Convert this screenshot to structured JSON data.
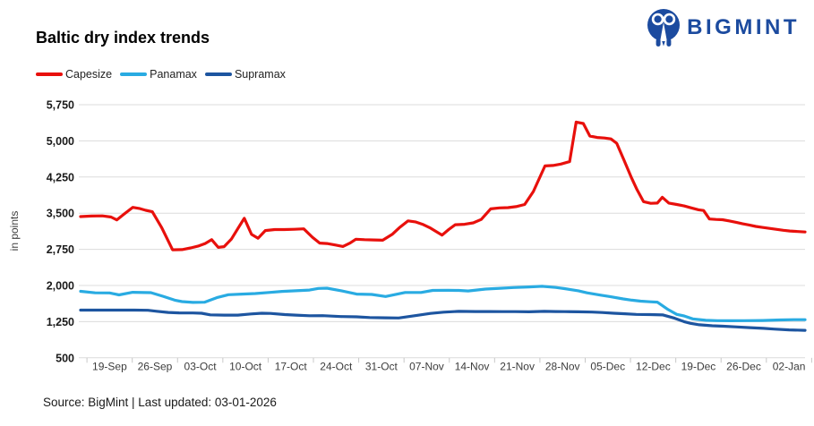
{
  "header": {
    "title": "Baltic dry index trends",
    "logo_text": "BIGMINT",
    "logo_color": "#1c4b9f"
  },
  "footer": {
    "text": "Source: BigMint | Last updated: 03-01-2026"
  },
  "chart_data": {
    "type": "line",
    "title": "Baltic dry index trends",
    "xlabel": "",
    "ylabel": "in points",
    "ylim": [
      500,
      5750
    ],
    "y_ticks": [
      500,
      1250,
      2000,
      2750,
      3500,
      4250,
      5000,
      5750
    ],
    "x_labels": [
      "19-Sep",
      "26-Sep",
      "03-Oct",
      "10-Oct",
      "17-Oct",
      "24-Oct",
      "31-Oct",
      "07-Nov",
      "14-Nov",
      "21-Nov",
      "28-Nov",
      "05-Dec",
      "12-Dec",
      "19-Dec",
      "26-Dec",
      "02-Jan"
    ],
    "grid": true,
    "legend_position": "top-left",
    "colors": {
      "gridline": "#dcdcdc",
      "axis_tick": "#c8c8c8",
      "y_label": "#1a1a1a",
      "x_label": "#3c3c3c"
    },
    "series": [
      {
        "name": "Capesize",
        "color": "#e8100c",
        "points": [
          [
            0,
            3430
          ],
          [
            0.015,
            3440
          ],
          [
            0.03,
            3445
          ],
          [
            0.042,
            3420
          ],
          [
            0.05,
            3360
          ],
          [
            0.06,
            3480
          ],
          [
            0.072,
            3620
          ],
          [
            0.082,
            3595
          ],
          [
            0.09,
            3560
          ],
          [
            0.099,
            3530
          ],
          [
            0.112,
            3200
          ],
          [
            0.127,
            2740
          ],
          [
            0.14,
            2745
          ],
          [
            0.152,
            2780
          ],
          [
            0.163,
            2820
          ],
          [
            0.172,
            2870
          ],
          [
            0.181,
            2950
          ],
          [
            0.19,
            2790
          ],
          [
            0.198,
            2805
          ],
          [
            0.208,
            2960
          ],
          [
            0.217,
            3180
          ],
          [
            0.226,
            3395
          ],
          [
            0.236,
            3060
          ],
          [
            0.245,
            2980
          ],
          [
            0.255,
            3140
          ],
          [
            0.268,
            3160
          ],
          [
            0.281,
            3160
          ],
          [
            0.295,
            3165
          ],
          [
            0.308,
            3175
          ],
          [
            0.32,
            3000
          ],
          [
            0.33,
            2880
          ],
          [
            0.34,
            2870
          ],
          [
            0.352,
            2840
          ],
          [
            0.362,
            2810
          ],
          [
            0.372,
            2880
          ],
          [
            0.38,
            2960
          ],
          [
            0.392,
            2950
          ],
          [
            0.405,
            2945
          ],
          [
            0.417,
            2940
          ],
          [
            0.43,
            3060
          ],
          [
            0.44,
            3200
          ],
          [
            0.452,
            3340
          ],
          [
            0.462,
            3320
          ],
          [
            0.472,
            3270
          ],
          [
            0.482,
            3200
          ],
          [
            0.499,
            3045
          ],
          [
            0.508,
            3160
          ],
          [
            0.517,
            3260
          ],
          [
            0.53,
            3270
          ],
          [
            0.542,
            3300
          ],
          [
            0.553,
            3370
          ],
          [
            0.566,
            3590
          ],
          [
            0.578,
            3610
          ],
          [
            0.59,
            3615
          ],
          [
            0.601,
            3635
          ],
          [
            0.613,
            3680
          ],
          [
            0.625,
            3950
          ],
          [
            0.641,
            4480
          ],
          [
            0.652,
            4490
          ],
          [
            0.663,
            4520
          ],
          [
            0.675,
            4570
          ],
          [
            0.684,
            5390
          ],
          [
            0.694,
            5360
          ],
          [
            0.703,
            5100
          ],
          [
            0.713,
            5070
          ],
          [
            0.723,
            5060
          ],
          [
            0.732,
            5040
          ],
          [
            0.74,
            4950
          ],
          [
            0.75,
            4600
          ],
          [
            0.76,
            4250
          ],
          [
            0.768,
            3990
          ],
          [
            0.777,
            3740
          ],
          [
            0.787,
            3705
          ],
          [
            0.796,
            3710
          ],
          [
            0.803,
            3830
          ],
          [
            0.812,
            3710
          ],
          [
            0.823,
            3680
          ],
          [
            0.833,
            3650
          ],
          [
            0.843,
            3610
          ],
          [
            0.853,
            3570
          ],
          [
            0.86,
            3555
          ],
          [
            0.868,
            3380
          ],
          [
            0.877,
            3370
          ],
          [
            0.886,
            3365
          ],
          [
            0.895,
            3340
          ],
          [
            0.905,
            3310
          ],
          [
            0.914,
            3280
          ],
          [
            0.923,
            3255
          ],
          [
            0.932,
            3225
          ],
          [
            0.941,
            3205
          ],
          [
            0.951,
            3185
          ],
          [
            0.96,
            3165
          ],
          [
            0.97,
            3145
          ],
          [
            0.979,
            3130
          ],
          [
            0.99,
            3120
          ],
          [
            1,
            3110
          ]
        ]
      },
      {
        "name": "Panamax",
        "color": "#29abe2",
        "points": [
          [
            0,
            1880
          ],
          [
            0.02,
            1848
          ],
          [
            0.04,
            1845
          ],
          [
            0.053,
            1805
          ],
          [
            0.072,
            1858
          ],
          [
            0.097,
            1852
          ],
          [
            0.114,
            1775
          ],
          [
            0.13,
            1695
          ],
          [
            0.14,
            1665
          ],
          [
            0.155,
            1650
          ],
          [
            0.171,
            1652
          ],
          [
            0.188,
            1748
          ],
          [
            0.204,
            1808
          ],
          [
            0.223,
            1822
          ],
          [
            0.241,
            1832
          ],
          [
            0.26,
            1855
          ],
          [
            0.278,
            1878
          ],
          [
            0.297,
            1890
          ],
          [
            0.316,
            1905
          ],
          [
            0.328,
            1938
          ],
          [
            0.34,
            1945
          ],
          [
            0.36,
            1890
          ],
          [
            0.381,
            1822
          ],
          [
            0.402,
            1815
          ],
          [
            0.421,
            1772
          ],
          [
            0.448,
            1855
          ],
          [
            0.47,
            1856
          ],
          [
            0.486,
            1898
          ],
          [
            0.507,
            1900
          ],
          [
            0.522,
            1898
          ],
          [
            0.535,
            1886
          ],
          [
            0.559,
            1925
          ],
          [
            0.582,
            1945
          ],
          [
            0.597,
            1958
          ],
          [
            0.619,
            1970
          ],
          [
            0.637,
            1983
          ],
          [
            0.656,
            1960
          ],
          [
            0.668,
            1935
          ],
          [
            0.687,
            1890
          ],
          [
            0.699,
            1848
          ],
          [
            0.718,
            1800
          ],
          [
            0.73,
            1772
          ],
          [
            0.749,
            1722
          ],
          [
            0.761,
            1695
          ],
          [
            0.773,
            1675
          ],
          [
            0.786,
            1662
          ],
          [
            0.796,
            1655
          ],
          [
            0.811,
            1500
          ],
          [
            0.823,
            1400
          ],
          [
            0.833,
            1368
          ],
          [
            0.845,
            1308
          ],
          [
            0.863,
            1278
          ],
          [
            0.879,
            1270
          ],
          [
            0.897,
            1268
          ],
          [
            0.916,
            1270
          ],
          [
            0.941,
            1275
          ],
          [
            0.965,
            1285
          ],
          [
            0.984,
            1290
          ],
          [
            1,
            1290
          ]
        ]
      },
      {
        "name": "Supramax",
        "color": "#1d55a0",
        "points": [
          [
            0,
            1490
          ],
          [
            0.025,
            1490
          ],
          [
            0.05,
            1490
          ],
          [
            0.074,
            1490
          ],
          [
            0.093,
            1485
          ],
          [
            0.105,
            1465
          ],
          [
            0.121,
            1442
          ],
          [
            0.136,
            1432
          ],
          [
            0.155,
            1430
          ],
          [
            0.167,
            1425
          ],
          [
            0.179,
            1392
          ],
          [
            0.198,
            1386
          ],
          [
            0.217,
            1386
          ],
          [
            0.235,
            1410
          ],
          [
            0.25,
            1425
          ],
          [
            0.262,
            1420
          ],
          [
            0.282,
            1396
          ],
          [
            0.297,
            1386
          ],
          [
            0.316,
            1372
          ],
          [
            0.334,
            1375
          ],
          [
            0.359,
            1356
          ],
          [
            0.381,
            1350
          ],
          [
            0.399,
            1336
          ],
          [
            0.421,
            1330
          ],
          [
            0.439,
            1326
          ],
          [
            0.464,
            1380
          ],
          [
            0.483,
            1420
          ],
          [
            0.501,
            1446
          ],
          [
            0.522,
            1464
          ],
          [
            0.545,
            1460
          ],
          [
            0.563,
            1460
          ],
          [
            0.582,
            1458
          ],
          [
            0.6,
            1458
          ],
          [
            0.619,
            1455
          ],
          [
            0.64,
            1464
          ],
          [
            0.656,
            1460
          ],
          [
            0.668,
            1458
          ],
          [
            0.687,
            1455
          ],
          [
            0.706,
            1448
          ],
          [
            0.72,
            1440
          ],
          [
            0.736,
            1425
          ],
          [
            0.749,
            1415
          ],
          [
            0.767,
            1400
          ],
          [
            0.786,
            1396
          ],
          [
            0.804,
            1390
          ],
          [
            0.82,
            1320
          ],
          [
            0.833,
            1250
          ],
          [
            0.842,
            1215
          ],
          [
            0.854,
            1185
          ],
          [
            0.872,
            1165
          ],
          [
            0.887,
            1155
          ],
          [
            0.906,
            1140
          ],
          [
            0.924,
            1125
          ],
          [
            0.943,
            1110
          ],
          [
            0.957,
            1095
          ],
          [
            0.978,
            1080
          ],
          [
            1,
            1070
          ]
        ]
      }
    ]
  }
}
